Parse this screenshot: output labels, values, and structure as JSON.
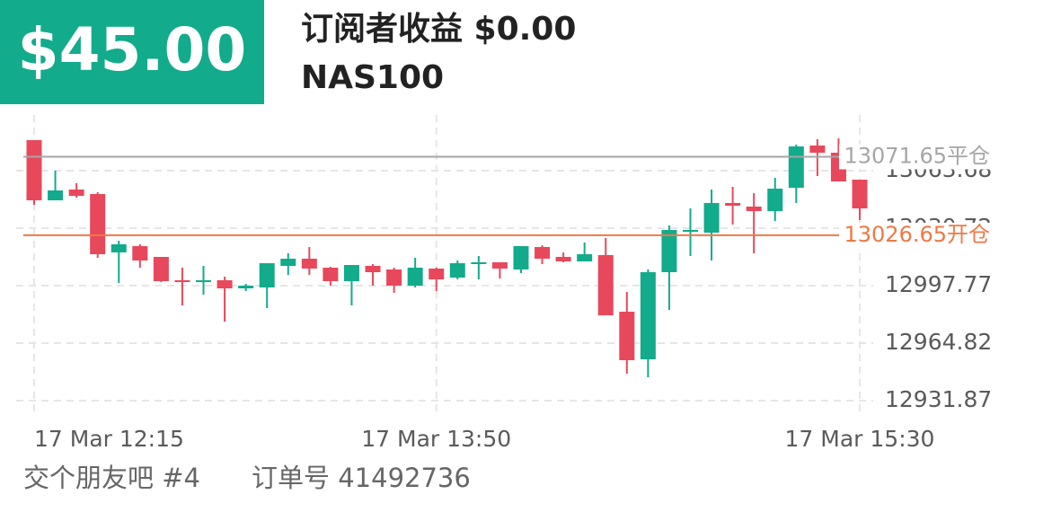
{
  "header": {
    "amount": "$45.00",
    "title": "订阅者收益 $0.00",
    "symbol": "NAS100"
  },
  "footer": {
    "author": "交个朋友吧 #4",
    "order": "订单号 41492736"
  },
  "chart_data": {
    "type": "candlestick",
    "categories": [
      "17 Mar  12:15",
      null,
      null,
      null,
      null,
      null,
      null,
      null,
      null,
      null,
      null,
      null,
      null,
      null,
      null,
      null,
      null,
      null,
      null,
      "17 Mar  13:50",
      null,
      null,
      null,
      null,
      null,
      null,
      null,
      null,
      null,
      null,
      null,
      null,
      null,
      null,
      null,
      null,
      null,
      null,
      null,
      "17 Mar  15:30"
    ],
    "open": [
      13081.16,
      13046.67,
      13052.85,
      13050.27,
      13016.81,
      13020.42,
      13014.24,
      13000.85,
      12999.82,
      13000.85,
      12996.22,
      12996.73,
      13009.09,
      13013.21,
      13008.06,
      13000.34,
      13009.09,
      13007.03,
      12997.76,
      13007.55,
      13002.4,
      13010.12,
      13011.15,
      13007.03,
      13019.9,
      13014.24,
      13011.66,
      13015.27,
      12982.84,
      12955.55,
      13005.49,
      13028.65,
      13028.14,
      13045.13,
      13043.07,
      13040.49,
      13053.88,
      13078.07,
      13073.95,
      13058.51
    ],
    "high": [
      13081.16,
      13063.66,
      13056.45,
      13051.3,
      13023.5,
      13021.45,
      13014.24,
      13008.06,
      13009.09,
      13002.91,
      12998.79,
      13010.63,
      13016.3,
      13019.9,
      13008.58,
      13009.6,
      13010.12,
      13008.06,
      13013.72,
      13008.06,
      13012.18,
      13014.75,
      13011.15,
      13020.42,
      13020.93,
      13016.81,
      13022.47,
      13025.05,
      12994.16,
      13007.03,
      13032.26,
      13042.04,
      13052.85,
      13054.39,
      13050.79,
      13059.54,
      13078.59,
      13081.68,
      13082.19,
      13058.51
    ],
    "low": [
      13044.1,
      13046.67,
      13048.21,
      13013.72,
      12999.31,
      13008.06,
      12999.82,
      12986.44,
      12992.62,
      12977.17,
      12994.68,
      12984.89,
      13003.94,
      13003.94,
      12997.76,
      12986.44,
      12997.76,
      12993.65,
      12996.73,
      12994.68,
      13001.37,
      13001.37,
      13001.88,
      13004.97,
      13010.12,
      13011.15,
      13011.66,
      12980.78,
      12947.31,
      12945.25,
      12983.87,
      13014.75,
      13012.18,
      13032.77,
      13016.3,
      13034.83,
      13045.13,
      13060.57,
      13057.48,
      13035.34
    ],
    "close": [
      13046.67,
      13052.33,
      13049.24,
      13015.78,
      13021.45,
      13012.18,
      13000.34,
      12999.82,
      13000.85,
      12996.22,
      12997.76,
      13010.63,
      13013.21,
      13007.55,
      13000.34,
      13009.6,
      13005.49,
      12997.76,
      13008.06,
      13001.37,
      13010.63,
      13011.15,
      13007.55,
      13020.42,
      13013.21,
      13011.66,
      13015.78,
      12980.78,
      12955.04,
      13005.49,
      13029.68,
      13029.68,
      13045.13,
      13043.58,
      13040.49,
      13053.36,
      13077.56,
      13073.95,
      13057.48,
      13042.04
    ],
    "up_color": "#12ab8b",
    "down_color": "#e8485b",
    "ylim": [
      12924.66,
      13095.58
    ],
    "yticks": [
      12931.87,
      12964.82,
      12997.77,
      13030.72,
      13063.68
    ],
    "grid": true,
    "levels": [
      {
        "value": 13071.65,
        "label": "13071.65平仓",
        "color": "#a6a6a6"
      },
      {
        "value": 13026.65,
        "label": "13026.65开仓",
        "color": "#f07843"
      }
    ]
  }
}
